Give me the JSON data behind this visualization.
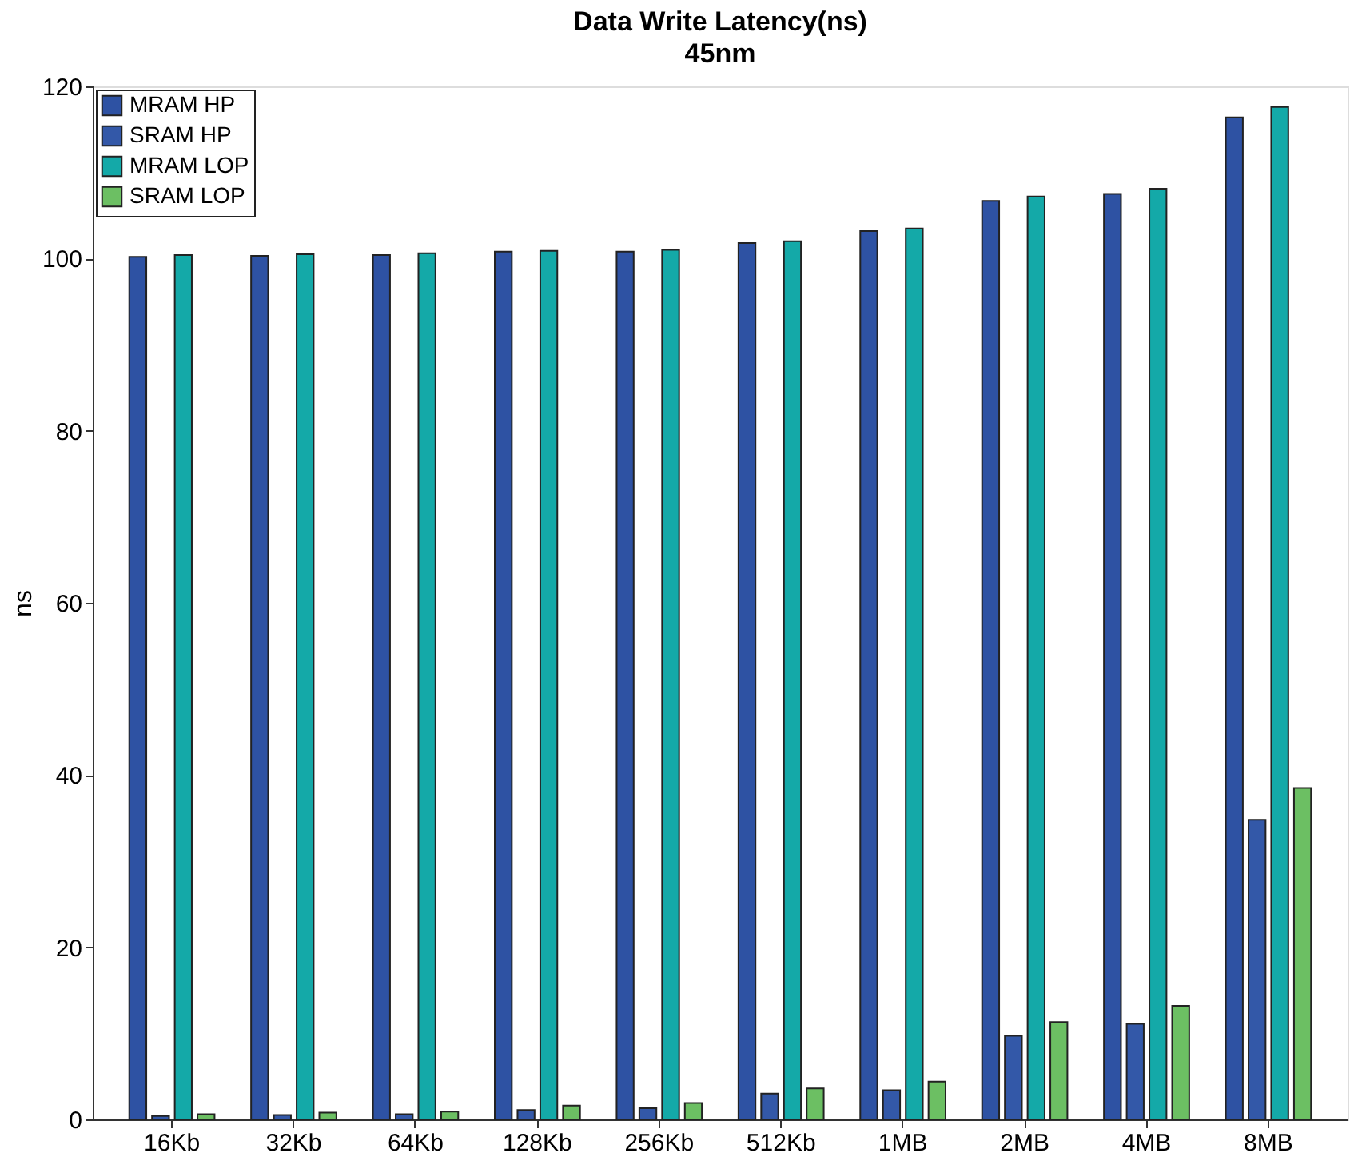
{
  "chart_data": {
    "type": "bar",
    "title": "Data Write Latency(ns)",
    "subtitle": "45nm",
    "ylabel": "ns",
    "categories": [
      "16Kb",
      "32Kb",
      "64Kb",
      "128Kb",
      "256Kb",
      "512Kb",
      "1MB",
      "2MB",
      "4MB",
      "8MB"
    ],
    "series": [
      {
        "name": "MRAM HP",
        "color": "#2e52a3",
        "values": [
          100.2,
          100.3,
          100.4,
          100.8,
          100.8,
          101.8,
          103.2,
          106.7,
          107.5,
          116.4
        ]
      },
      {
        "name": "SRAM HP",
        "color": "#3358a8",
        "values": [
          0.4,
          0.5,
          0.6,
          1.1,
          1.3,
          3.0,
          3.4,
          9.7,
          11.1,
          34.8
        ]
      },
      {
        "name": "MRAM LOP",
        "color": "#14a9a8",
        "values": [
          100.4,
          100.5,
          100.6,
          100.9,
          101.0,
          102.0,
          103.5,
          107.2,
          108.1,
          117.6
        ]
      },
      {
        "name": "SRAM LOP",
        "color": "#6cbf63",
        "values": [
          0.6,
          0.8,
          0.9,
          1.6,
          1.9,
          3.6,
          4.4,
          11.3,
          13.2,
          38.5
        ]
      }
    ],
    "ylim": [
      0,
      120
    ],
    "yticks": [
      0,
      20,
      40,
      60,
      80,
      100,
      120
    ],
    "grid": false,
    "legend": "top left"
  }
}
